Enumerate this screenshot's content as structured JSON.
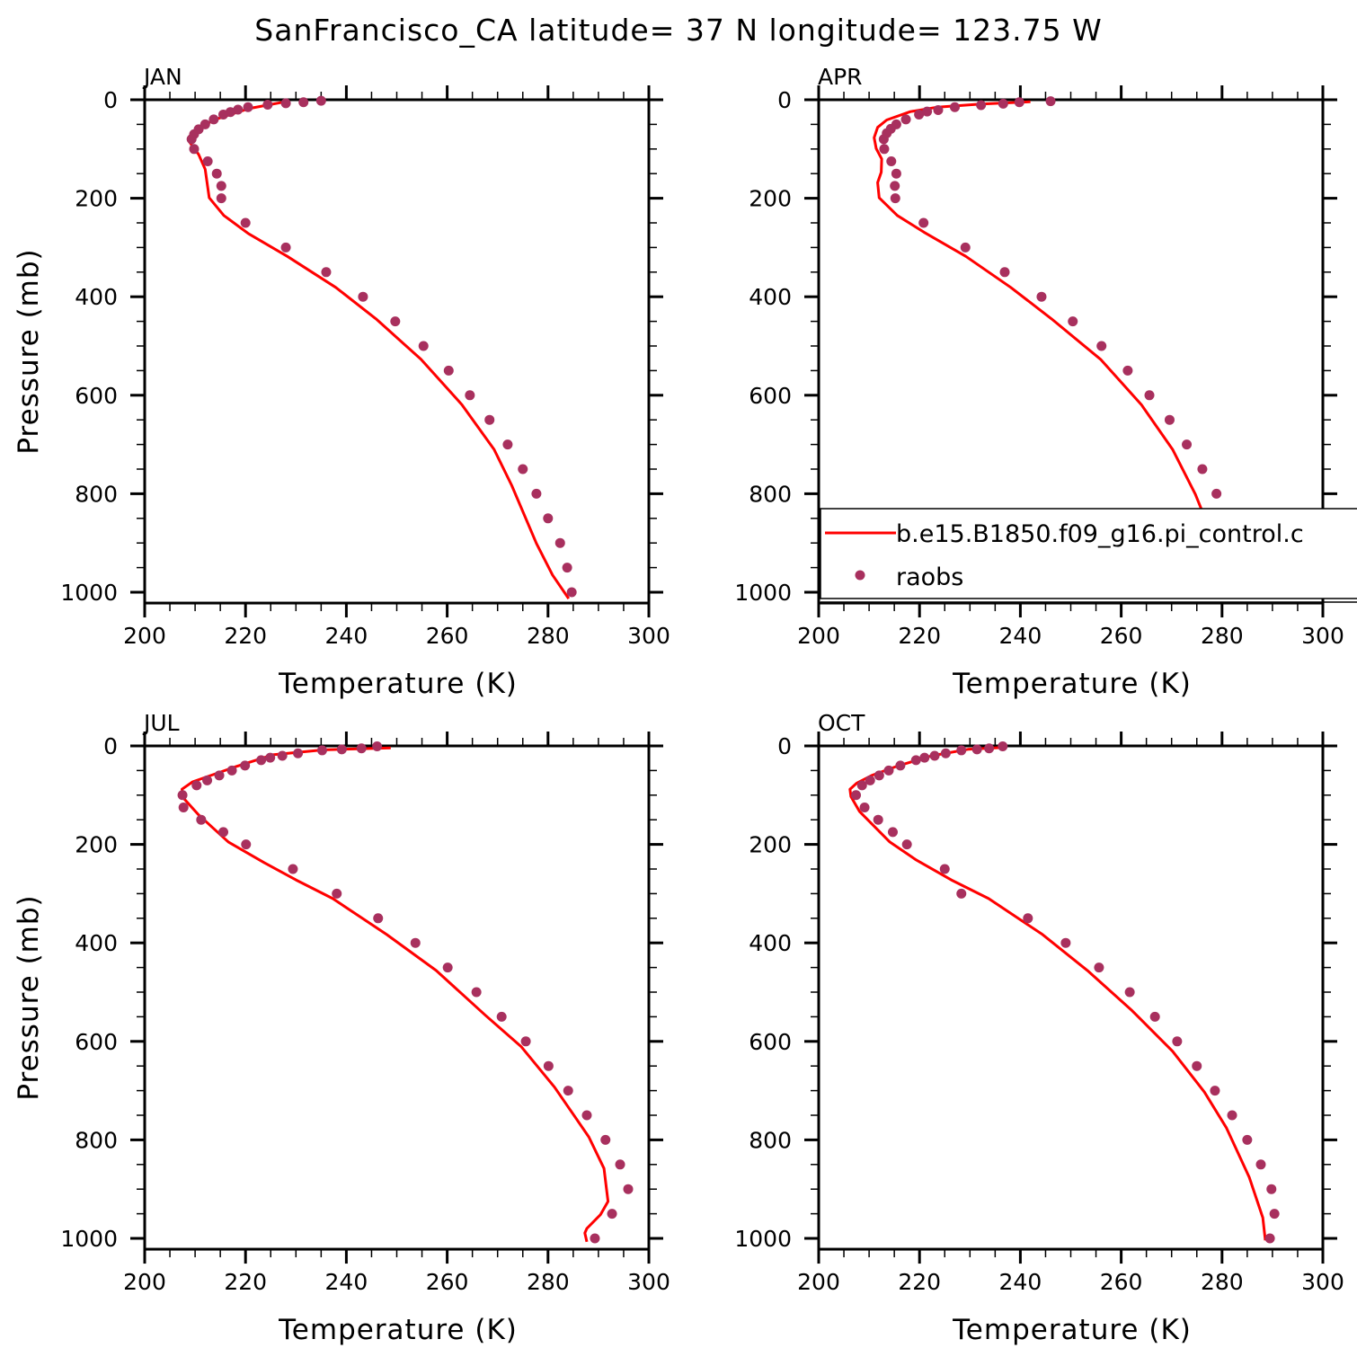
{
  "title": "SanFrancisco_CA  latitude= 37 N longitude= 123.75 W",
  "colors": {
    "model": "#ff0000",
    "raobs": "#a8305e"
  },
  "legend": {
    "placement": "inside APR panel, lower portion",
    "entries": [
      {
        "label": "b.e15.B1850.f09_g16.pi_control.c",
        "style": "red line"
      },
      {
        "label": "raobs",
        "style": "purple dot"
      }
    ]
  },
  "chart_data": [
    {
      "type": "line+scatter",
      "title": "JAN",
      "xlabel": "Temperature (K)",
      "ylabel": "Pressure (mb)",
      "xlim": [
        200,
        300
      ],
      "ylim": [
        0,
        1022
      ],
      "y_inverted": true,
      "xticks": [
        "200",
        "220",
        "240",
        "260",
        "280",
        "300"
      ],
      "yticks": [
        "0",
        "200",
        "400",
        "600",
        "800",
        "1000"
      ],
      "grid": false,
      "series": [
        {
          "name": "b.e15.B1850.f09_g16.pi_control.c",
          "kind": "line",
          "p": [
            4,
            18,
            38,
            56,
            74,
            86,
            111,
            141,
            199,
            235,
            272,
            318,
            381,
            445,
            527,
            619,
            710,
            783,
            901,
            965,
            1013
          ],
          "T": [
            227.9,
            220.6,
            214.6,
            210.7,
            208.9,
            208.9,
            210.7,
            212.0,
            212.8,
            215.7,
            220.6,
            228.3,
            237.9,
            245.9,
            254.8,
            262.9,
            269.3,
            272.8,
            277.7,
            280.9,
            284.1
          ]
        },
        {
          "name": "raobs",
          "kind": "scatter",
          "p": [
            2,
            5,
            7,
            10,
            15,
            20,
            25,
            30,
            40,
            50,
            60,
            70,
            80,
            100,
            125,
            150,
            175,
            200,
            250,
            300,
            350,
            400,
            450,
            500,
            550,
            600,
            650,
            700,
            750,
            800,
            850,
            900,
            950,
            1000
          ],
          "T": [
            235,
            231.5,
            228,
            224.4,
            220.5,
            218.5,
            217,
            215.6,
            213.7,
            212,
            210.7,
            209.8,
            209.3,
            209.8,
            212.5,
            214.3,
            215.2,
            215.2,
            220,
            228,
            236,
            243.3,
            249.7,
            255.3,
            260.3,
            264.5,
            268.4,
            272,
            275,
            277.7,
            280,
            282.4,
            283.8,
            284.7
          ]
        }
      ]
    },
    {
      "type": "line+scatter",
      "title": "APR",
      "xlabel": "Temperature (K)",
      "ylabel": "",
      "xlim": [
        200,
        300
      ],
      "ylim": [
        0,
        1022
      ],
      "y_inverted": true,
      "xticks": [
        "200",
        "220",
        "240",
        "260",
        "280",
        "300"
      ],
      "yticks": [
        "0",
        "200",
        "400",
        "600",
        "800",
        "1000"
      ],
      "grid": false,
      "series": [
        {
          "name": "b.e15.B1850.f09_g16.pi_control.c",
          "kind": "line",
          "p": [
            4,
            9,
            15,
            24,
            41,
            56,
            77,
            99,
            120,
            147,
            168,
            199,
            235,
            269,
            318,
            381,
            445,
            527,
            619,
            710,
            801,
            892,
            965,
            1007
          ],
          "T": [
            242.0,
            231.9,
            223.6,
            218.2,
            213.5,
            211.7,
            211.0,
            211.4,
            212.5,
            212.4,
            211.7,
            212.0,
            215.6,
            220.9,
            229.2,
            238.1,
            246.2,
            255.9,
            264.0,
            270.2,
            274.7,
            278.3,
            281.0,
            284.5
          ]
        },
        {
          "name": "raobs",
          "kind": "scatter",
          "p": [
            3,
            5,
            8,
            11,
            15,
            21,
            24,
            30,
            40,
            50,
            59,
            68,
            80,
            100,
            125,
            150,
            175,
            200,
            250,
            300,
            350,
            400,
            450,
            500,
            550,
            600,
            650,
            700,
            750,
            800,
            850,
            900,
            950,
            1000
          ],
          "T": [
            246.0,
            239.8,
            236.6,
            232.2,
            227.0,
            223.7,
            221.5,
            219.9,
            217.3,
            215.4,
            214.3,
            213.5,
            212.9,
            213.0,
            214.4,
            215.4,
            215.1,
            215.2,
            220.8,
            229.1,
            236.9,
            244.2,
            250.4,
            256.1,
            261.3,
            265.6,
            269.6,
            273.0,
            276.1,
            278.9,
            281.6,
            283.9,
            284.8,
            285.6
          ]
        }
      ]
    },
    {
      "type": "line+scatter",
      "title": "JUL",
      "xlabel": "Temperature (K)",
      "ylabel": "Pressure (mb)",
      "xlim": [
        200,
        300
      ],
      "ylim": [
        0,
        1022
      ],
      "y_inverted": true,
      "xticks": [
        "200",
        "220",
        "240",
        "260",
        "280",
        "300"
      ],
      "yticks": [
        "0",
        "200",
        "400",
        "600",
        "800",
        "1000"
      ],
      "grid": false,
      "series": [
        {
          "name": "b.e15.B1850.f09_g16.pi_control.c",
          "kind": "line",
          "p": [
            4,
            8,
            18,
            43,
            73,
            88,
            106,
            140,
            195,
            237,
            272,
            310,
            383,
            456,
            547,
            611,
            693,
            794,
            858,
            900,
            925,
            952,
            980,
            989,
            1007
          ],
          "T": [
            248.8,
            235.5,
            225.4,
            217.8,
            209.5,
            207.4,
            207.7,
            210.7,
            216.6,
            223.7,
            230.0,
            237.3,
            248.0,
            257.8,
            267.6,
            274.7,
            281.3,
            288.1,
            291.1,
            291.6,
            291.9,
            290.4,
            287.7,
            287.3,
            287.7
          ]
        },
        {
          "name": "raobs",
          "kind": "scatter",
          "p": [
            1,
            5,
            7,
            9,
            15,
            20,
            24,
            29,
            40,
            50,
            60,
            70,
            80,
            100,
            125,
            150,
            175,
            200,
            250,
            300,
            350,
            400,
            450,
            500,
            550,
            600,
            650,
            700,
            750,
            800,
            850,
            900,
            950,
            1000
          ],
          "T": [
            246.1,
            243.0,
            239.1,
            235.2,
            230.4,
            227.3,
            224.9,
            223.1,
            219.9,
            217.3,
            214.8,
            212.4,
            210.3,
            207.5,
            207.7,
            211.2,
            215.6,
            220.1,
            229.4,
            238.1,
            246.3,
            253.7,
            260.1,
            265.8,
            270.8,
            275.6,
            280.1,
            284.0,
            287.7,
            291.4,
            294.3,
            295.9,
            292.7,
            289.3
          ]
        }
      ]
    },
    {
      "type": "line+scatter",
      "title": "OCT",
      "xlabel": "Temperature (K)",
      "ylabel": "",
      "xlim": [
        200,
        300
      ],
      "ylim": [
        0,
        1022
      ],
      "y_inverted": true,
      "xticks": [
        "200",
        "220",
        "240",
        "260",
        "280",
        "300"
      ],
      "yticks": [
        "0",
        "200",
        "400",
        "600",
        "800",
        "1000"
      ],
      "grid": false,
      "series": [
        {
          "name": "b.e15.B1850.f09_g16.pi_control.c",
          "kind": "line",
          "p": [
            3,
            7,
            20,
            40,
            60,
            76,
            88,
            103,
            133,
            195,
            232,
            272,
            310,
            383,
            456,
            538,
            620,
            703,
            776,
            876,
            958,
            1004
          ],
          "T": [
            237.0,
            229.6,
            222.4,
            215.9,
            210.5,
            207.5,
            206.2,
            206.4,
            208.1,
            214.1,
            219.4,
            226.3,
            233.7,
            244.4,
            253.3,
            262.2,
            270.2,
            276.5,
            280.9,
            285.4,
            288.1,
            288.6
          ]
        },
        {
          "name": "raobs",
          "kind": "scatter",
          "p": [
            1,
            5,
            7,
            9,
            15,
            20,
            24,
            29,
            40,
            50,
            60,
            70,
            80,
            100,
            125,
            150,
            175,
            200,
            250,
            300,
            350,
            400,
            450,
            500,
            550,
            600,
            650,
            700,
            750,
            800,
            850,
            900,
            950,
            1000
          ],
          "T": [
            236.5,
            233.8,
            231.4,
            228.3,
            225.2,
            223.0,
            221.0,
            219.3,
            216.2,
            213.9,
            212.0,
            210.2,
            208.6,
            207.4,
            209.1,
            211.8,
            214.7,
            217.5,
            225.0,
            228.3,
            241.5,
            249.0,
            255.6,
            261.7,
            266.7,
            271.1,
            275.0,
            278.6,
            282.0,
            285.0,
            287.7,
            289.8,
            290.4,
            289.5
          ]
        }
      ]
    }
  ]
}
